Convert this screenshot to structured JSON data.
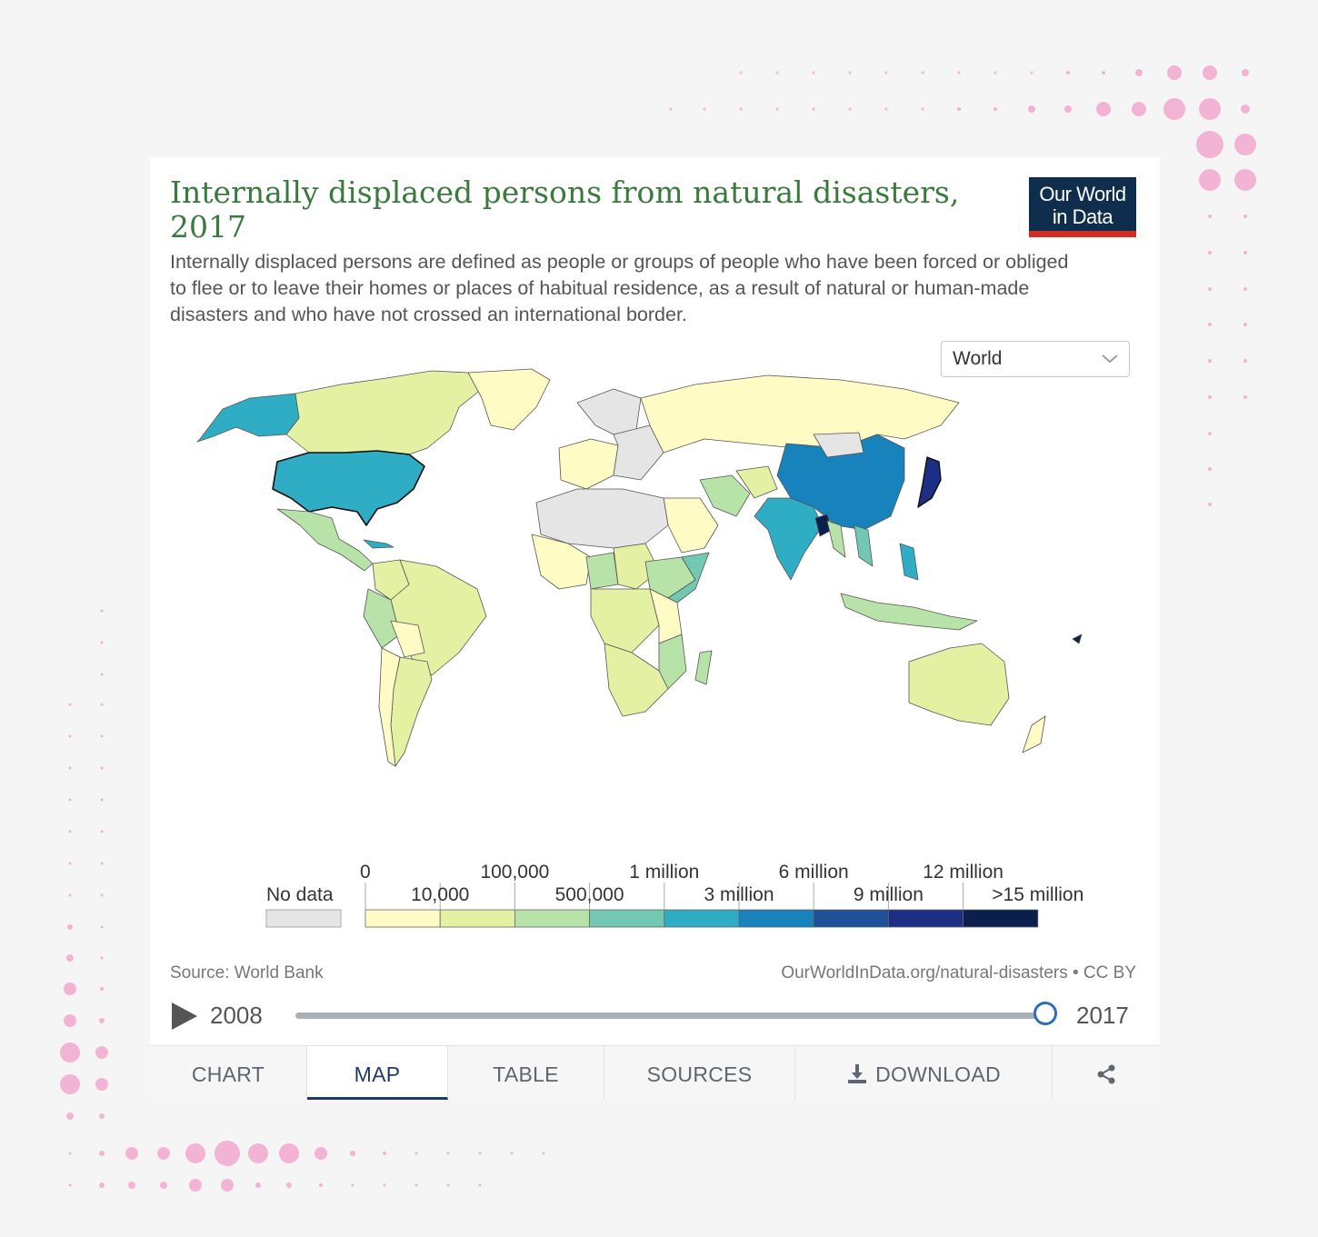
{
  "header": {
    "title": "Internally displaced persons from natural disasters, 2017",
    "subtitle": "Internally displaced persons are defined as people or groups of people who have been forced or obliged to flee or to leave their homes or places of habitual residence, as a result of natural or human-made disasters and who have not crossed an international border.",
    "logo_line1": "Our World",
    "logo_line2": "in Data"
  },
  "region_select": {
    "value": "World",
    "icon": "chevron-down-icon"
  },
  "legend": {
    "no_data_label": "No data",
    "no_data_color": "#e5e5e5",
    "bins": [
      {
        "label": "0",
        "color": "#fffbc5"
      },
      {
        "label": "10,000",
        "color": "#e4f1a3"
      },
      {
        "label": "100,000",
        "color": "#b8e3a8"
      },
      {
        "label": "500,000",
        "color": "#72c8b3"
      },
      {
        "label": "1 million",
        "color": "#2fadc4"
      },
      {
        "label": "3 million",
        "color": "#1782bb"
      },
      {
        "label": "6 million",
        "color": "#1e4f99"
      },
      {
        "label": "9 million",
        "color": "#1d2f84"
      },
      {
        "label": "12 million",
        "color": "#0a1f4b"
      }
    ],
    "last_label": ">15 million"
  },
  "footer": {
    "source": "Source: World Bank",
    "url": "OurWorldInData.org/natural-disasters • CC BY"
  },
  "timeline": {
    "start_year": "2008",
    "end_year": "2017",
    "position": 1.0
  },
  "tabs": {
    "chart": "CHART",
    "map": "MAP",
    "table": "TABLE",
    "sources": "SOURCES",
    "download": "DOWNLOAD",
    "active": "MAP"
  },
  "colors": {
    "title": "#3a7a3e",
    "logo_bg": "#0f2e4d",
    "logo_accent": "#d42b21",
    "map_border": "#555555",
    "dots": "#f3b3d4"
  }
}
